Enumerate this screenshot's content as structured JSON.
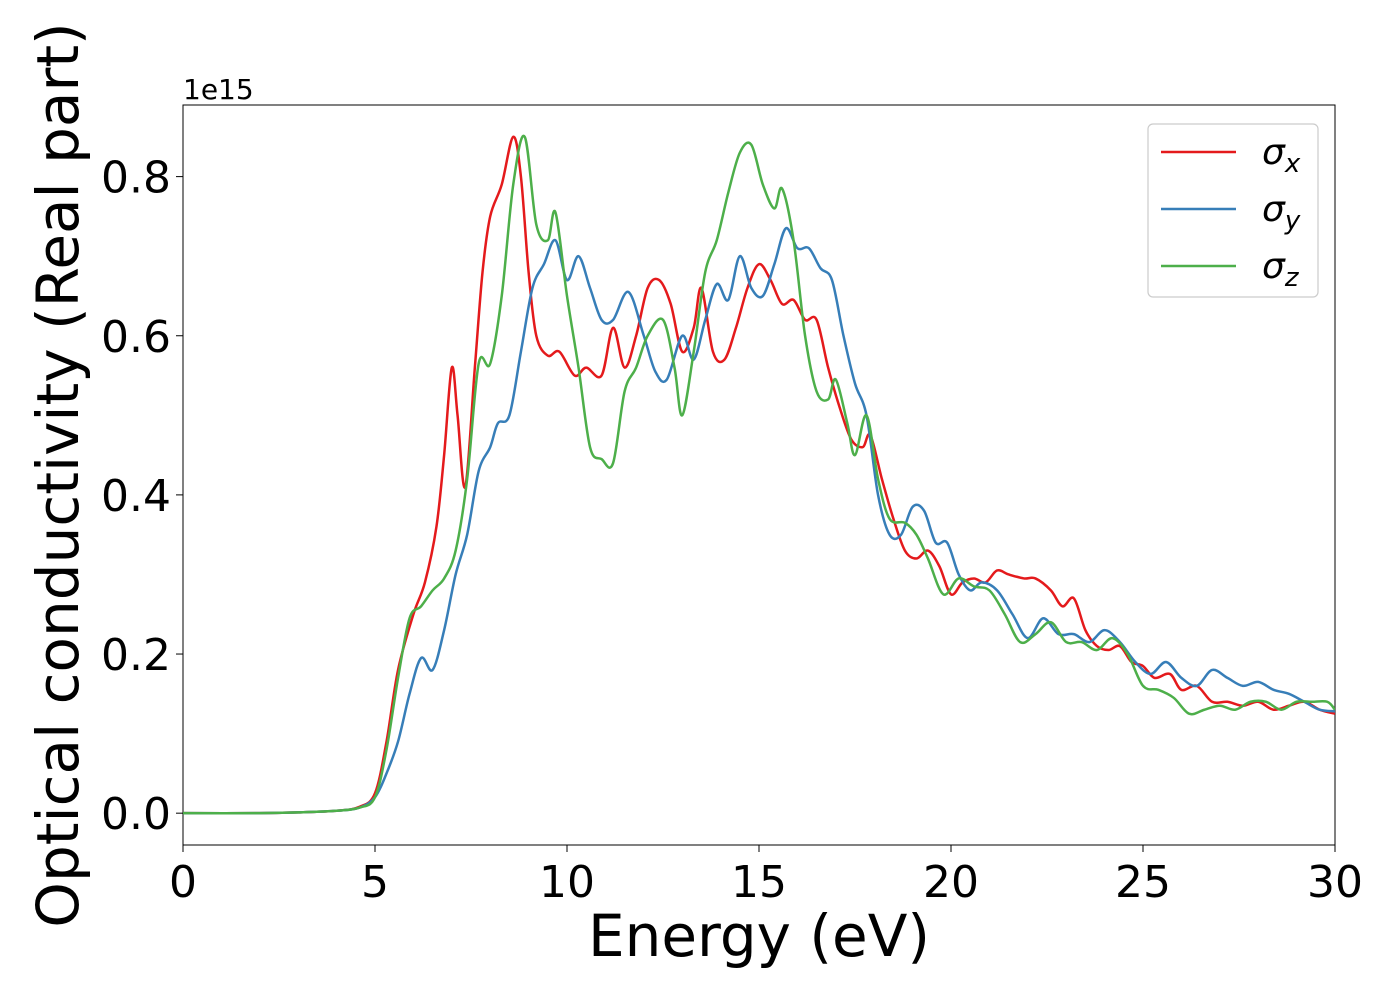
{
  "chart_data": {
    "type": "line",
    "title": "",
    "xlabel": "Energy (eV)",
    "ylabel": "Optical conductivity (Real part)",
    "y_offset_label": "1e15",
    "xlim": [
      0,
      30
    ],
    "ylim": [
      -0.04,
      0.89
    ],
    "xticks": [
      0,
      5,
      10,
      15,
      20,
      25,
      30
    ],
    "xtick_labels": [
      "0",
      "5",
      "10",
      "15",
      "20",
      "25",
      "30"
    ],
    "yticks": [
      0.0,
      0.2,
      0.4,
      0.6,
      0.8
    ],
    "ytick_labels": [
      "0.0",
      "0.2",
      "0.4",
      "0.6",
      "0.8"
    ],
    "grid": false,
    "legend_position": "top-right",
    "series": [
      {
        "name": "σx",
        "legend_symbol": "σ",
        "legend_subscript": "x",
        "color": "#e41a1c",
        "points": [
          [
            0,
            0
          ],
          [
            2,
            0
          ],
          [
            3,
            0.001
          ],
          [
            4,
            0.003
          ],
          [
            4.6,
            0.008
          ],
          [
            5.0,
            0.025
          ],
          [
            5.3,
            0.09
          ],
          [
            5.6,
            0.18
          ],
          [
            6.0,
            0.25
          ],
          [
            6.3,
            0.29
          ],
          [
            6.6,
            0.36
          ],
          [
            6.8,
            0.45
          ],
          [
            7.0,
            0.56
          ],
          [
            7.15,
            0.5
          ],
          [
            7.35,
            0.41
          ],
          [
            7.6,
            0.56
          ],
          [
            7.8,
            0.68
          ],
          [
            8.0,
            0.75
          ],
          [
            8.3,
            0.79
          ],
          [
            8.6,
            0.85
          ],
          [
            8.8,
            0.8
          ],
          [
            9.0,
            0.68
          ],
          [
            9.2,
            0.6
          ],
          [
            9.5,
            0.575
          ],
          [
            9.8,
            0.58
          ],
          [
            10.2,
            0.55
          ],
          [
            10.5,
            0.56
          ],
          [
            10.9,
            0.55
          ],
          [
            11.2,
            0.61
          ],
          [
            11.5,
            0.56
          ],
          [
            11.8,
            0.6
          ],
          [
            12.1,
            0.66
          ],
          [
            12.4,
            0.67
          ],
          [
            12.7,
            0.64
          ],
          [
            13.0,
            0.58
          ],
          [
            13.3,
            0.61
          ],
          [
            13.5,
            0.66
          ],
          [
            13.8,
            0.58
          ],
          [
            14.1,
            0.57
          ],
          [
            14.4,
            0.61
          ],
          [
            14.7,
            0.66
          ],
          [
            15.0,
            0.69
          ],
          [
            15.3,
            0.67
          ],
          [
            15.6,
            0.64
          ],
          [
            15.9,
            0.645
          ],
          [
            16.2,
            0.62
          ],
          [
            16.5,
            0.62
          ],
          [
            16.8,
            0.56
          ],
          [
            17.1,
            0.51
          ],
          [
            17.4,
            0.47
          ],
          [
            17.7,
            0.46
          ],
          [
            17.9,
            0.475
          ],
          [
            18.2,
            0.42
          ],
          [
            18.5,
            0.37
          ],
          [
            18.8,
            0.33
          ],
          [
            19.1,
            0.32
          ],
          [
            19.4,
            0.33
          ],
          [
            19.7,
            0.31
          ],
          [
            20.0,
            0.275
          ],
          [
            20.3,
            0.29
          ],
          [
            20.6,
            0.295
          ],
          [
            20.9,
            0.29
          ],
          [
            21.2,
            0.305
          ],
          [
            21.5,
            0.3
          ],
          [
            21.9,
            0.295
          ],
          [
            22.2,
            0.295
          ],
          [
            22.6,
            0.28
          ],
          [
            22.9,
            0.26
          ],
          [
            23.2,
            0.27
          ],
          [
            23.5,
            0.23
          ],
          [
            23.8,
            0.21
          ],
          [
            24.1,
            0.205
          ],
          [
            24.4,
            0.21
          ],
          [
            24.7,
            0.19
          ],
          [
            25.0,
            0.185
          ],
          [
            25.3,
            0.17
          ],
          [
            25.7,
            0.175
          ],
          [
            26.0,
            0.155
          ],
          [
            26.4,
            0.16
          ],
          [
            26.8,
            0.14
          ],
          [
            27.2,
            0.14
          ],
          [
            27.6,
            0.135
          ],
          [
            28.0,
            0.14
          ],
          [
            28.4,
            0.13
          ],
          [
            28.8,
            0.135
          ],
          [
            29.2,
            0.14
          ],
          [
            29.6,
            0.13
          ],
          [
            30,
            0.125
          ]
        ]
      },
      {
        "name": "σy",
        "legend_symbol": "σ",
        "legend_subscript": "y",
        "color": "#377eb8",
        "points": [
          [
            0,
            0
          ],
          [
            2,
            0
          ],
          [
            3,
            0.001
          ],
          [
            4,
            0.003
          ],
          [
            4.6,
            0.007
          ],
          [
            5.0,
            0.02
          ],
          [
            5.3,
            0.05
          ],
          [
            5.6,
            0.09
          ],
          [
            5.9,
            0.15
          ],
          [
            6.2,
            0.195
          ],
          [
            6.5,
            0.18
          ],
          [
            6.8,
            0.23
          ],
          [
            7.1,
            0.3
          ],
          [
            7.4,
            0.35
          ],
          [
            7.7,
            0.43
          ],
          [
            8.0,
            0.46
          ],
          [
            8.2,
            0.49
          ],
          [
            8.5,
            0.5
          ],
          [
            8.8,
            0.58
          ],
          [
            9.1,
            0.66
          ],
          [
            9.4,
            0.69
          ],
          [
            9.7,
            0.72
          ],
          [
            10.0,
            0.67
          ],
          [
            10.3,
            0.7
          ],
          [
            10.6,
            0.66
          ],
          [
            10.9,
            0.62
          ],
          [
            11.2,
            0.62
          ],
          [
            11.6,
            0.655
          ],
          [
            12.0,
            0.6
          ],
          [
            12.3,
            0.555
          ],
          [
            12.6,
            0.545
          ],
          [
            13.0,
            0.6
          ],
          [
            13.3,
            0.57
          ],
          [
            13.6,
            0.62
          ],
          [
            13.9,
            0.665
          ],
          [
            14.2,
            0.645
          ],
          [
            14.5,
            0.7
          ],
          [
            14.8,
            0.66
          ],
          [
            15.1,
            0.65
          ],
          [
            15.4,
            0.69
          ],
          [
            15.7,
            0.735
          ],
          [
            16.0,
            0.71
          ],
          [
            16.3,
            0.71
          ],
          [
            16.6,
            0.685
          ],
          [
            16.9,
            0.67
          ],
          [
            17.2,
            0.6
          ],
          [
            17.5,
            0.54
          ],
          [
            17.8,
            0.5
          ],
          [
            18.1,
            0.4
          ],
          [
            18.4,
            0.35
          ],
          [
            18.7,
            0.35
          ],
          [
            19.0,
            0.385
          ],
          [
            19.3,
            0.38
          ],
          [
            19.6,
            0.34
          ],
          [
            19.9,
            0.34
          ],
          [
            20.2,
            0.3
          ],
          [
            20.5,
            0.28
          ],
          [
            20.8,
            0.29
          ],
          [
            21.2,
            0.28
          ],
          [
            21.6,
            0.25
          ],
          [
            22.0,
            0.22
          ],
          [
            22.4,
            0.245
          ],
          [
            22.8,
            0.225
          ],
          [
            23.2,
            0.225
          ],
          [
            23.6,
            0.215
          ],
          [
            24.0,
            0.23
          ],
          [
            24.4,
            0.215
          ],
          [
            24.8,
            0.19
          ],
          [
            25.2,
            0.175
          ],
          [
            25.6,
            0.19
          ],
          [
            26.0,
            0.17
          ],
          [
            26.4,
            0.16
          ],
          [
            26.8,
            0.18
          ],
          [
            27.2,
            0.17
          ],
          [
            27.6,
            0.16
          ],
          [
            28.0,
            0.165
          ],
          [
            28.4,
            0.155
          ],
          [
            28.8,
            0.15
          ],
          [
            29.2,
            0.14
          ],
          [
            29.6,
            0.13
          ],
          [
            30,
            0.128
          ]
        ]
      },
      {
        "name": "σz",
        "legend_symbol": "σ",
        "legend_subscript": "z",
        "color": "#4daf4a",
        "points": [
          [
            0,
            0
          ],
          [
            2,
            0
          ],
          [
            3,
            0.001
          ],
          [
            4,
            0.003
          ],
          [
            4.6,
            0.007
          ],
          [
            5.0,
            0.02
          ],
          [
            5.3,
            0.08
          ],
          [
            5.6,
            0.17
          ],
          [
            5.9,
            0.245
          ],
          [
            6.2,
            0.26
          ],
          [
            6.5,
            0.28
          ],
          [
            6.8,
            0.295
          ],
          [
            7.1,
            0.33
          ],
          [
            7.4,
            0.42
          ],
          [
            7.7,
            0.565
          ],
          [
            8.0,
            0.565
          ],
          [
            8.3,
            0.65
          ],
          [
            8.6,
            0.79
          ],
          [
            8.9,
            0.85
          ],
          [
            9.2,
            0.74
          ],
          [
            9.5,
            0.72
          ],
          [
            9.7,
            0.755
          ],
          [
            10.0,
            0.65
          ],
          [
            10.3,
            0.56
          ],
          [
            10.6,
            0.46
          ],
          [
            10.9,
            0.445
          ],
          [
            11.2,
            0.44
          ],
          [
            11.5,
            0.53
          ],
          [
            11.8,
            0.56
          ],
          [
            12.1,
            0.6
          ],
          [
            12.5,
            0.62
          ],
          [
            12.8,
            0.56
          ],
          [
            13.0,
            0.5
          ],
          [
            13.3,
            0.58
          ],
          [
            13.6,
            0.68
          ],
          [
            13.9,
            0.72
          ],
          [
            14.2,
            0.78
          ],
          [
            14.5,
            0.83
          ],
          [
            14.8,
            0.84
          ],
          [
            15.1,
            0.79
          ],
          [
            15.4,
            0.76
          ],
          [
            15.6,
            0.785
          ],
          [
            15.9,
            0.72
          ],
          [
            16.2,
            0.6
          ],
          [
            16.5,
            0.53
          ],
          [
            16.8,
            0.52
          ],
          [
            17.0,
            0.545
          ],
          [
            17.3,
            0.49
          ],
          [
            17.5,
            0.45
          ],
          [
            17.8,
            0.5
          ],
          [
            18.1,
            0.42
          ],
          [
            18.4,
            0.37
          ],
          [
            18.8,
            0.365
          ],
          [
            19.1,
            0.35
          ],
          [
            19.4,
            0.32
          ],
          [
            19.8,
            0.275
          ],
          [
            20.2,
            0.295
          ],
          [
            20.6,
            0.285
          ],
          [
            21.0,
            0.28
          ],
          [
            21.4,
            0.25
          ],
          [
            21.8,
            0.215
          ],
          [
            22.2,
            0.225
          ],
          [
            22.6,
            0.24
          ],
          [
            23.0,
            0.215
          ],
          [
            23.4,
            0.215
          ],
          [
            23.8,
            0.205
          ],
          [
            24.2,
            0.22
          ],
          [
            24.6,
            0.2
          ],
          [
            25.0,
            0.16
          ],
          [
            25.4,
            0.155
          ],
          [
            25.8,
            0.145
          ],
          [
            26.2,
            0.125
          ],
          [
            26.6,
            0.13
          ],
          [
            27.0,
            0.135
          ],
          [
            27.4,
            0.13
          ],
          [
            27.8,
            0.14
          ],
          [
            28.2,
            0.14
          ],
          [
            28.6,
            0.13
          ],
          [
            29.0,
            0.14
          ],
          [
            29.4,
            0.14
          ],
          [
            29.8,
            0.14
          ],
          [
            30,
            0.13
          ]
        ]
      }
    ]
  }
}
